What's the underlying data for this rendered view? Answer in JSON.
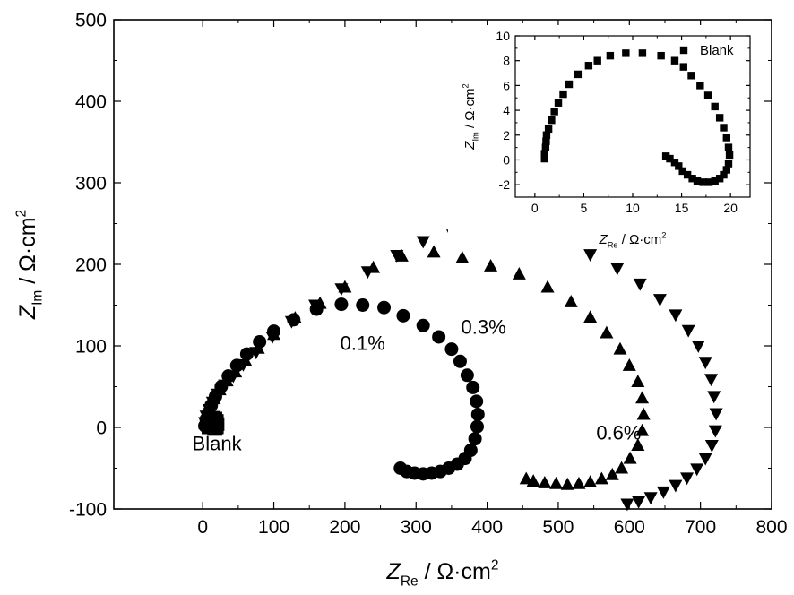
{
  "chart_data": [
    {
      "type": "scatter",
      "xlabel": {
        "main": "Z",
        "sub": "Re",
        "unit": " / Ω·cm",
        "sup": "2"
      },
      "ylabel": {
        "main": "Z",
        "sub": "Im",
        "unit": " / Ω·cm",
        "sup": "2"
      },
      "xlim": [
        -125,
        800
      ],
      "ylim": [
        -100,
        500
      ],
      "xticks": [
        0,
        100,
        200,
        300,
        400,
        500,
        600,
        700,
        800
      ],
      "yticks": [
        -100,
        0,
        100,
        200,
        300,
        400,
        500
      ],
      "annotations": [
        {
          "text": "Blank",
          "x": 20,
          "y": -28
        },
        {
          "text": "0.1%",
          "x": 225,
          "y": 95
        },
        {
          "text": "0.3%",
          "x": 395,
          "y": 115
        },
        {
          "text": "0.6%",
          "x": 585,
          "y": -15
        }
      ],
      "series": [
        {
          "name": "Blank",
          "marker": "square",
          "points": [
            [
              8,
              0
            ],
            [
              9,
              5
            ],
            [
              10,
              9
            ],
            [
              12,
              11
            ],
            [
              15,
              12
            ],
            [
              18,
              11
            ],
            [
              20,
              8
            ],
            [
              21,
              4
            ],
            [
              20,
              0
            ],
            [
              18,
              -2
            ],
            [
              16,
              -1
            ]
          ]
        },
        {
          "name": "0.1%",
          "marker": "circle",
          "points": [
            [
              3,
              2
            ],
            [
              5,
              10
            ],
            [
              8,
              18
            ],
            [
              12,
              27
            ],
            [
              18,
              38
            ],
            [
              26,
              50
            ],
            [
              36,
              63
            ],
            [
              48,
              76
            ],
            [
              62,
              90
            ],
            [
              80,
              105
            ],
            [
              100,
              118
            ],
            [
              128,
              132
            ],
            [
              160,
              145
            ],
            [
              195,
              151
            ],
            [
              225,
              150
            ],
            [
              255,
              147
            ],
            [
              282,
              137
            ],
            [
              310,
              125
            ],
            [
              332,
              111
            ],
            [
              350,
              96
            ],
            [
              362,
              81
            ],
            [
              372,
              64
            ],
            [
              380,
              49
            ],
            [
              385,
              32
            ],
            [
              387,
              16
            ],
            [
              386,
              1
            ],
            [
              383,
              -14
            ],
            [
              377,
              -28
            ],
            [
              369,
              -38
            ],
            [
              358,
              -45
            ],
            [
              346,
              -50
            ],
            [
              334,
              -54
            ],
            [
              322,
              -56
            ],
            [
              310,
              -57
            ],
            [
              298,
              -56
            ],
            [
              287,
              -54
            ],
            [
              278,
              -50
            ]
          ]
        },
        {
          "name": "0.3%",
          "marker": "triangle-up",
          "points": [
            [
              3,
              5
            ],
            [
              6,
              15
            ],
            [
              10,
              25
            ],
            [
              16,
              35
            ],
            [
              24,
              46
            ],
            [
              34,
              57
            ],
            [
              46,
              68
            ],
            [
              60,
              82
            ],
            [
              78,
              97
            ],
            [
              100,
              114
            ],
            [
              130,
              134
            ],
            [
              165,
              152
            ],
            [
              200,
              172
            ],
            [
              240,
              196
            ],
            [
              280,
              210
            ],
            [
              325,
              215
            ],
            [
              365,
              208
            ],
            [
              405,
              198
            ],
            [
              445,
              188
            ],
            [
              485,
              172
            ],
            [
              518,
              154
            ],
            [
              545,
              135
            ],
            [
              568,
              116
            ],
            [
              587,
              96
            ],
            [
              600,
              76
            ],
            [
              612,
              56
            ],
            [
              618,
              36
            ],
            [
              620,
              16
            ],
            [
              618,
              -4
            ],
            [
              612,
              -22
            ],
            [
              601,
              -38
            ],
            [
              589,
              -50
            ],
            [
              576,
              -58
            ],
            [
              561,
              -63
            ],
            [
              545,
              -67
            ],
            [
              529,
              -69
            ],
            [
              513,
              -70
            ],
            [
              497,
              -69
            ],
            [
              481,
              -68
            ],
            [
              465,
              -66
            ],
            [
              455,
              -63
            ]
          ]
        },
        {
          "name": "0.6%",
          "marker": "triangle-down",
          "points": [
            [
              3,
              6
            ],
            [
              5,
              14
            ],
            [
              9,
              22
            ],
            [
              14,
              31
            ],
            [
              21,
              41
            ],
            [
              31,
              52
            ],
            [
              43,
              63
            ],
            [
              57,
              77
            ],
            [
              75,
              92
            ],
            [
              98,
              111
            ],
            [
              125,
              130
            ],
            [
              158,
              150
            ],
            [
              195,
              170
            ],
            [
              232,
              191
            ],
            [
              273,
              211
            ],
            [
              310,
              228
            ],
            [
              352,
              236
            ],
            [
              400,
              240
            ],
            [
              452,
              236
            ],
            [
              500,
              227
            ],
            [
              545,
              212
            ],
            [
              583,
              195
            ],
            [
              615,
              176
            ],
            [
              643,
              157
            ],
            [
              665,
              138
            ],
            [
              683,
              119
            ],
            [
              697,
              100
            ],
            [
              707,
              80
            ],
            [
              715,
              59
            ],
            [
              719,
              38
            ],
            [
              722,
              17
            ],
            [
              721,
              -4
            ],
            [
              716,
              -22
            ],
            [
              707,
              -38
            ],
            [
              695,
              -51
            ],
            [
              681,
              -62
            ],
            [
              665,
              -71
            ],
            [
              648,
              -79
            ],
            [
              630,
              -86
            ],
            [
              613,
              -91
            ],
            [
              597,
              -94
            ]
          ]
        }
      ]
    },
    {
      "type": "scatter",
      "legend": {
        "label": "Blank",
        "position": "top-right"
      },
      "xlabel": {
        "main": "Z",
        "sub": "Re",
        "unit": " / Ω·cm",
        "sup": "2"
      },
      "ylabel": {
        "main": "Z",
        "sub": "Im",
        "unit": " / Ω·cm",
        "sup": "2"
      },
      "xlim": [
        -2,
        22
      ],
      "ylim": [
        -3,
        10
      ],
      "xticks": [
        0,
        5,
        10,
        15,
        20
      ],
      "yticks": [
        -2,
        0,
        2,
        4,
        6,
        8,
        10
      ],
      "series": [
        {
          "name": "Blank",
          "marker": "square",
          "points": [
            [
              1.0,
              0.1
            ],
            [
              1.0,
              0.5
            ],
            [
              1.1,
              1.0
            ],
            [
              1.15,
              1.5
            ],
            [
              1.2,
              2.0
            ],
            [
              1.4,
              2.5
            ],
            [
              1.7,
              3.2
            ],
            [
              2.0,
              3.9
            ],
            [
              2.4,
              4.6
            ],
            [
              2.9,
              5.3
            ],
            [
              3.5,
              6.1
            ],
            [
              4.4,
              6.9
            ],
            [
              5.5,
              7.6
            ],
            [
              6.4,
              8.0
            ],
            [
              7.7,
              8.4
            ],
            [
              9.3,
              8.6
            ],
            [
              11.0,
              8.6
            ],
            [
              12.9,
              8.4
            ],
            [
              14.3,
              8.0
            ],
            [
              15.2,
              7.5
            ],
            [
              16.0,
              6.8
            ],
            [
              16.9,
              6.0
            ],
            [
              17.7,
              5.2
            ],
            [
              18.4,
              4.3
            ],
            [
              18.9,
              3.4
            ],
            [
              19.3,
              2.6
            ],
            [
              19.6,
              1.8
            ],
            [
              19.8,
              1.0
            ],
            [
              19.9,
              0.4
            ],
            [
              19.8,
              -0.3
            ],
            [
              19.6,
              -0.8
            ],
            [
              19.3,
              -1.2
            ],
            [
              18.9,
              -1.5
            ],
            [
              18.4,
              -1.7
            ],
            [
              17.8,
              -1.8
            ],
            [
              17.2,
              -1.8
            ],
            [
              16.6,
              -1.7
            ],
            [
              16.1,
              -1.5
            ],
            [
              15.6,
              -1.2
            ],
            [
              15.1,
              -0.9
            ],
            [
              14.7,
              -0.5
            ],
            [
              14.3,
              -0.2
            ],
            [
              13.8,
              0.1
            ],
            [
              13.4,
              0.3
            ]
          ]
        }
      ]
    }
  ]
}
